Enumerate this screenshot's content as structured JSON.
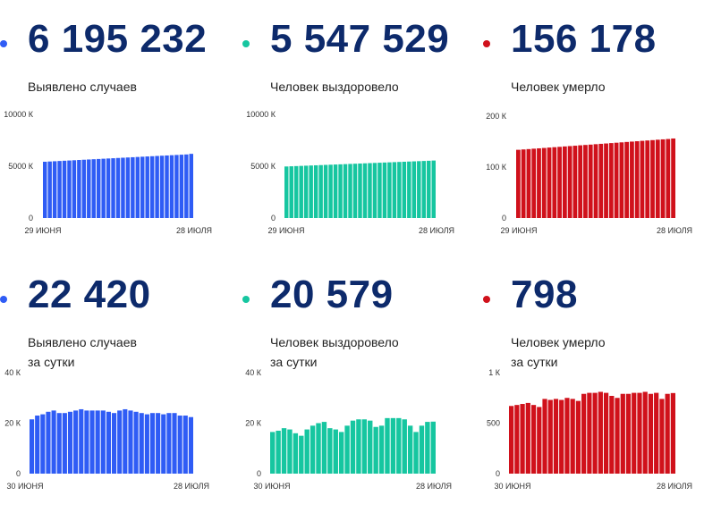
{
  "colors": {
    "blue": "#2f5cf5",
    "green": "#16c6a0",
    "red": "#d0111b"
  },
  "panels": [
    {
      "value": "6 195 232",
      "label_lines": [
        "Выявлено случаев"
      ],
      "color": "blue"
    },
    {
      "value": "5 547 529",
      "label_lines": [
        "Человек выздоровело"
      ],
      "color": "green"
    },
    {
      "value": "156 178",
      "label_lines": [
        "Человек умерло"
      ],
      "color": "red"
    },
    {
      "value": "22 420",
      "label_lines": [
        "Выявлено случаев",
        "за сутки"
      ],
      "color": "blue"
    },
    {
      "value": "20 579",
      "label_lines": [
        "Человек выздоровело",
        "за сутки"
      ],
      "color": "green"
    },
    {
      "value": "798",
      "label_lines": [
        "Человек умерло",
        "за сутки"
      ],
      "color": "red"
    }
  ],
  "chart_data": [
    {
      "type": "bar",
      "color": "blue",
      "x_start_label": "29 июня",
      "x_end_label": "28 июля",
      "y_ticks": [
        {
          "value": 0,
          "label": "0"
        },
        {
          "value": 5000,
          "label": "5000 К"
        },
        {
          "value": 10000,
          "label": "10000 К"
        }
      ],
      "ylim": [
        0,
        10000
      ],
      "series": [
        {
          "values": [
            5432,
            5456,
            5480,
            5505,
            5529,
            5553,
            5577,
            5602,
            5626,
            5650,
            5674,
            5698,
            5723,
            5747,
            5771,
            5796,
            5820,
            5844,
            5868,
            5892,
            5917,
            5941,
            5965,
            5990,
            6014,
            6038,
            6062,
            6087,
            6111,
            6135,
            6195
          ]
        }
      ]
    },
    {
      "type": "bar",
      "color": "green",
      "x_start_label": "29 июня",
      "x_end_label": "28 июля",
      "y_ticks": [
        {
          "value": 0,
          "label": "0"
        },
        {
          "value": 5000,
          "label": "5000 К"
        },
        {
          "value": 10000,
          "label": "10000 К"
        }
      ],
      "ylim": [
        0,
        10000
      ],
      "series": [
        {
          "values": [
            4975,
            4994,
            5013,
            5032,
            5051,
            5070,
            5089,
            5108,
            5127,
            5146,
            5165,
            5184,
            5203,
            5222,
            5241,
            5260,
            5279,
            5299,
            5318,
            5337,
            5356,
            5375,
            5394,
            5413,
            5432,
            5451,
            5470,
            5489,
            5508,
            5527,
            5548
          ]
        }
      ]
    },
    {
      "type": "bar",
      "color": "red",
      "x_start_label": "29 июня",
      "x_end_label": "28 июля",
      "y_ticks": [
        {
          "value": 0,
          "label": "0"
        },
        {
          "value": 100,
          "label": "100 К"
        },
        {
          "value": 200,
          "label": "200 К"
        }
      ],
      "ylim": [
        0,
        200
      ],
      "series": [
        {
          "values": [
            134.0,
            134.7,
            135.4,
            136.2,
            136.9,
            137.6,
            138.4,
            139.1,
            139.8,
            140.6,
            141.3,
            142.0,
            142.8,
            143.5,
            144.2,
            145.0,
            145.7,
            146.4,
            147.2,
            147.9,
            148.6,
            149.4,
            150.1,
            150.8,
            151.6,
            152.3,
            153.0,
            153.8,
            154.5,
            155.2,
            156.2
          ]
        }
      ]
    },
    {
      "type": "bar",
      "color": "blue",
      "x_start_label": "30 июня",
      "x_end_label": "28 июля",
      "y_ticks": [
        {
          "value": 0,
          "label": "0"
        },
        {
          "value": 20,
          "label": "20 К"
        },
        {
          "value": 40,
          "label": "40 К"
        }
      ],
      "ylim": [
        0,
        40
      ],
      "series": [
        {
          "values": [
            21.5,
            23.0,
            23.5,
            24.5,
            25.0,
            24.0,
            24.0,
            24.5,
            25.0,
            25.5,
            25.0,
            25.0,
            25.0,
            25.0,
            24.5,
            24.0,
            25.0,
            25.5,
            25.0,
            24.5,
            24.0,
            23.5,
            24.0,
            24.0,
            23.5,
            24.0,
            24.0,
            23.0,
            23.0,
            22.4
          ]
        }
      ]
    },
    {
      "type": "bar",
      "color": "green",
      "x_start_label": "30 июня",
      "x_end_label": "28 июля",
      "y_ticks": [
        {
          "value": 0,
          "label": "0"
        },
        {
          "value": 20,
          "label": "20 К"
        },
        {
          "value": 40,
          "label": "40 К"
        }
      ],
      "ylim": [
        0,
        40
      ],
      "series": [
        {
          "values": [
            16.5,
            17.0,
            18.0,
            17.5,
            16.0,
            15.0,
            17.5,
            19.0,
            20.0,
            20.5,
            18.0,
            17.5,
            16.5,
            19.0,
            21.0,
            21.5,
            21.5,
            21.0,
            18.5,
            19.0,
            22.0,
            22.0,
            22.0,
            21.5,
            19.0,
            16.5,
            19.0,
            20.5,
            20.6
          ]
        }
      ]
    },
    {
      "type": "bar",
      "color": "red",
      "x_start_label": "30 июня",
      "x_end_label": "28 июля",
      "y_ticks": [
        {
          "value": 0,
          "label": "0"
        },
        {
          "value": 500,
          "label": "500"
        },
        {
          "value": 1000,
          "label": "1 К"
        }
      ],
      "ylim": [
        0,
        1000
      ],
      "series": [
        {
          "values": [
            670,
            680,
            690,
            700,
            680,
            660,
            740,
            730,
            740,
            730,
            750,
            740,
            720,
            790,
            800,
            800,
            810,
            800,
            770,
            750,
            790,
            790,
            800,
            800,
            810,
            790,
            800,
            740,
            790,
            798
          ]
        }
      ]
    }
  ]
}
